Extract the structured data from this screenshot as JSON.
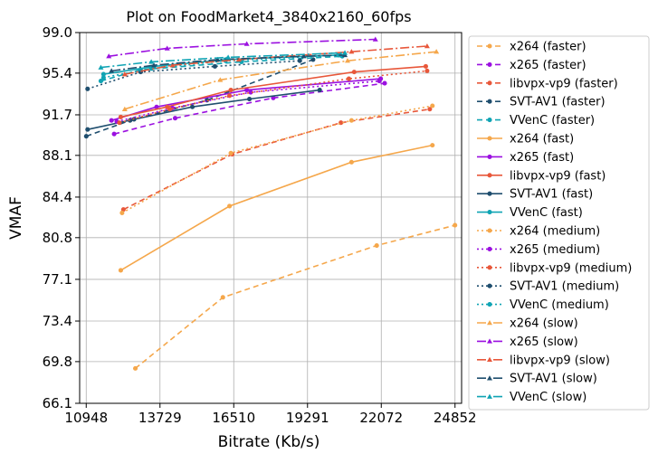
{
  "chart_data": {
    "type": "line",
    "title": "Plot on FoodMarket4_3840x2160_60fps",
    "xlabel": "Bitrate (Kb/s)",
    "ylabel": "VMAF",
    "xlim": [
      10700,
      25100
    ],
    "ylim": [
      66.1,
      99.0
    ],
    "xticks": [
      10948,
      13729,
      16510,
      19291,
      22072,
      24852
    ],
    "xtick_labels": [
      "10948",
      "13729",
      "16510",
      "19291",
      "22072",
      "24852"
    ],
    "yticks": [
      66.1,
      69.8,
      73.4,
      77.1,
      80.8,
      84.4,
      88.1,
      91.7,
      95.4,
      99.0
    ],
    "ytick_labels": [
      "66.1",
      "69.8",
      "73.4",
      "77.1",
      "80.8",
      "84.4",
      "88.1",
      "91.7",
      "95.4",
      "99.0"
    ],
    "grid": true,
    "legend_position": "right-outside",
    "series": [
      {
        "name": "x264 (faster)",
        "color": "#f5a74b",
        "dash": "6,4",
        "marker": "circle",
        "x": [
          12800,
          16100,
          21900,
          24850
        ],
        "y": [
          69.2,
          75.5,
          80.1,
          81.9
        ]
      },
      {
        "name": "x265 (faster)",
        "color": "#9b10e0",
        "dash": "6,4",
        "marker": "circle",
        "x": [
          12000,
          14300,
          18000,
          22200
        ],
        "y": [
          90.0,
          91.4,
          93.2,
          94.5
        ]
      },
      {
        "name": "libvpx-vp9 (faster)",
        "color": "#e8573a",
        "dash": "6,4",
        "marker": "circle",
        "x": [
          12350,
          16450,
          20550,
          23900
        ],
        "y": [
          83.3,
          88.2,
          91.0,
          92.2
        ]
      },
      {
        "name": "SVT-AV1 (faster)",
        "color": "#1f4e6e",
        "dash": "6,4",
        "marker": "circle",
        "x": [
          10950,
          12600,
          15500,
          19500
        ],
        "y": [
          89.8,
          91.2,
          93.0,
          96.6
        ]
      },
      {
        "name": "VVenC (faster)",
        "color": "#10a4b4",
        "dash": "6,4",
        "marker": "circle",
        "x": [
          11500,
          13000,
          16800,
          20600
        ],
        "y": [
          94.7,
          95.7,
          96.4,
          96.9
        ]
      },
      {
        "name": "x264 (fast)",
        "color": "#f5a74b",
        "dash": "",
        "marker": "circle",
        "x": [
          12250,
          16350,
          20950,
          24000
        ],
        "y": [
          77.9,
          83.6,
          87.5,
          89.0
        ]
      },
      {
        "name": "x265 (fast)",
        "color": "#9b10e0",
        "dash": "",
        "marker": "circle",
        "x": [
          11900,
          13600,
          17000,
          22050
        ],
        "y": [
          91.2,
          92.4,
          93.9,
          94.9
        ]
      },
      {
        "name": "libvpx-vp9 (fast)",
        "color": "#e8573a",
        "dash": "",
        "marker": "circle",
        "x": [
          12250,
          14000,
          16400,
          21050,
          23750
        ],
        "y": [
          91.5,
          92.4,
          93.9,
          95.5,
          96.0
        ]
      },
      {
        "name": "SVT-AV1 (fast)",
        "color": "#1f4e6e",
        "dash": "",
        "marker": "circle",
        "x": [
          11000,
          12750,
          14950,
          17100,
          19750
        ],
        "y": [
          90.4,
          91.3,
          92.4,
          93.1,
          93.9
        ]
      },
      {
        "name": "VVenC (fast)",
        "color": "#10a4b4",
        "dash": "",
        "marker": "circle",
        "x": [
          11600,
          13500,
          16200,
          20450
        ],
        "y": [
          95.3,
          96.0,
          96.6,
          97.0
        ]
      },
      {
        "name": "x264 (medium)",
        "color": "#f5a74b",
        "dash": "2,3",
        "marker": "circle",
        "x": [
          12300,
          16400,
          20950,
          24000
        ],
        "y": [
          83.0,
          88.3,
          91.2,
          92.5
        ]
      },
      {
        "name": "x265 (medium)",
        "color": "#9b10e0",
        "dash": "2,3",
        "marker": "circle",
        "x": [
          12100,
          14200,
          17150,
          22000
        ],
        "y": [
          91.1,
          92.3,
          93.7,
          94.7
        ]
      },
      {
        "name": "libvpx-vp9 (medium)",
        "color": "#e8573a",
        "dash": "2,3",
        "marker": "circle",
        "x": [
          12200,
          14100,
          16350,
          20850,
          23800
        ],
        "y": [
          91.0,
          92.2,
          93.4,
          94.9,
          95.6
        ]
      },
      {
        "name": "SVT-AV1 (medium)",
        "color": "#1f4e6e",
        "dash": "2,3",
        "marker": "circle",
        "x": [
          11000,
          13000,
          15800,
          19000
        ],
        "y": [
          94.0,
          95.5,
          96.0,
          96.5
        ]
      },
      {
        "name": "VVenC (medium)",
        "color": "#10a4b4",
        "dash": "2,3",
        "marker": "circle",
        "x": [
          11600,
          13400,
          16200,
          20500
        ],
        "y": [
          95.0,
          95.8,
          96.5,
          97.0
        ]
      },
      {
        "name": "x264 (slow)",
        "color": "#f5a74b",
        "dash": "10,3,2,3",
        "marker": "triangle",
        "x": [
          12400,
          16000,
          20800,
          24150
        ],
        "y": [
          92.2,
          94.8,
          96.5,
          97.3
        ]
      },
      {
        "name": "x265 (slow)",
        "color": "#9b10e0",
        "dash": "10,3,2,3",
        "marker": "triangle",
        "x": [
          11800,
          14000,
          17000,
          21850
        ],
        "y": [
          96.9,
          97.6,
          98.0,
          98.4
        ]
      },
      {
        "name": "libvpx-vp9 (slow)",
        "color": "#e8573a",
        "dash": "10,3,2,3",
        "marker": "triangle",
        "x": [
          12400,
          14200,
          16700,
          20950,
          23800
        ],
        "y": [
          95.3,
          96.1,
          96.6,
          97.3,
          97.8
        ]
      },
      {
        "name": "SVT-AV1 (slow)",
        "color": "#1f4e6e",
        "dash": "10,3,2,3",
        "marker": "triangle",
        "x": [
          11900,
          13500,
          15900,
          19150,
          20700
        ],
        "y": [
          95.6,
          96.1,
          96.6,
          96.9,
          97.0
        ]
      },
      {
        "name": "VVenC (slow)",
        "color": "#10a4b4",
        "dash": "10,3,2,3",
        "marker": "triangle",
        "x": [
          11500,
          13400,
          16300,
          20700
        ],
        "y": [
          95.9,
          96.4,
          96.8,
          97.2
        ]
      }
    ]
  }
}
